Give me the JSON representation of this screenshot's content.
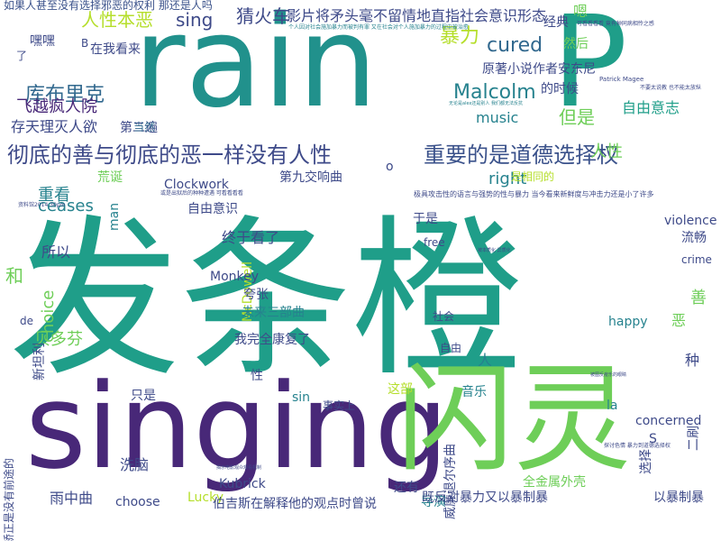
{
  "words": [
    {
      "text": "发条橙",
      "color": "#1f9e89"
    },
    {
      "text": "rain",
      "color": "#21918c"
    },
    {
      "text": "P",
      "color": "#1f9e89"
    },
    {
      "text": "singing",
      "color": "#482878"
    },
    {
      "text": "闪灵",
      "color": "#6ece58"
    },
    {
      "text": "彻底的善与彻底的恶一样没有人性",
      "color": "#3e4a89"
    },
    {
      "text": "重要的是道德选择权",
      "color": "#3b528b"
    },
    {
      "text": "库布里克",
      "color": "#31688e"
    },
    {
      "text": "Malcolm",
      "color": "#26828e"
    },
    {
      "text": "cured",
      "color": "#31688e"
    },
    {
      "text": "暴力",
      "color": "#b5de2b"
    },
    {
      "text": "人性本恶",
      "color": "#b5de2b"
    },
    {
      "text": "sing",
      "color": "#3e4a89"
    },
    {
      "text": "猜火车",
      "color": "#3e4a89"
    },
    {
      "text": "影片将矛头毫不留情地直指社会意识形态",
      "color": "#3e4a89"
    },
    {
      "text": "如果人甚至没有选择邪恶的权利 那还是人吗",
      "color": "#3b528b"
    },
    {
      "text": "飞越疯人院",
      "color": "#482878"
    },
    {
      "text": "存天理灭人欲",
      "color": "#3e4a89"
    },
    {
      "text": "自由意志",
      "color": "#1f9e89"
    },
    {
      "text": "人性",
      "color": "#6ece58"
    },
    {
      "text": "但是",
      "color": "#6ece58"
    },
    {
      "text": "right",
      "color": "#26828e"
    },
    {
      "text": "music",
      "color": "#26828e"
    },
    {
      "text": "第二遍",
      "color": "#3e4a89"
    },
    {
      "text": "当然",
      "color": "#31688e"
    },
    {
      "text": "原著小说作者安东尼",
      "color": "#3e4a89"
    },
    {
      "text": "的时候",
      "color": "#3e4a89"
    },
    {
      "text": "在我看来",
      "color": "#3e4a89"
    },
    {
      "text": "嘿嘿",
      "color": "#3e4a89"
    },
    {
      "text": "第九交响曲",
      "color": "#3e4a89"
    },
    {
      "text": "Clockwork",
      "color": "#3e4a89"
    },
    {
      "text": "自由意识",
      "color": "#3e4a89"
    },
    {
      "text": "重看",
      "color": "#26828e"
    },
    {
      "text": "ceases",
      "color": "#26828e"
    },
    {
      "text": "终于看了",
      "color": "#3e4a89"
    },
    {
      "text": "荒诞",
      "color": "#6ece58"
    },
    {
      "text": "于是",
      "color": "#3e4a89"
    },
    {
      "text": "经典",
      "color": "#3e4a89"
    },
    {
      "text": "嗯",
      "color": "#6ece58"
    },
    {
      "text": "然后",
      "color": "#6ece58"
    },
    {
      "text": "是相同的",
      "color": "#b5de2b"
    },
    {
      "text": "violence",
      "color": "#3e4a89"
    },
    {
      "text": "流畅",
      "color": "#3e4a89"
    },
    {
      "text": "crime",
      "color": "#3e4a89"
    },
    {
      "text": "free",
      "color": "#3e4a89"
    },
    {
      "text": "所以",
      "color": "#3e4a89"
    },
    {
      "text": "和",
      "color": "#6ece58"
    },
    {
      "text": "choice",
      "color": "#6ece58"
    },
    {
      "text": "man",
      "color": "#26828e"
    },
    {
      "text": "McDowell",
      "color": "#b5de2b"
    },
    {
      "text": "Monkey",
      "color": "#3e4a89"
    },
    {
      "text": "夸张",
      "color": "#3e4a89"
    },
    {
      "text": "未来三部曲",
      "color": "#26828e"
    },
    {
      "text": "我完全康复了",
      "color": "#3e4a89"
    },
    {
      "text": "社会",
      "color": "#3e4a89"
    },
    {
      "text": "自由",
      "color": "#3e4a89"
    },
    {
      "text": "人",
      "color": "#26828e"
    },
    {
      "text": "happy",
      "color": "#26828e"
    },
    {
      "text": "善",
      "color": "#6ece58"
    },
    {
      "text": "恶",
      "color": "#6ece58"
    },
    {
      "text": "种",
      "color": "#3e4a89"
    },
    {
      "text": "贝多芬",
      "color": "#6ece58"
    },
    {
      "text": "新坦利",
      "color": "#3e4a89"
    },
    {
      "text": "只是",
      "color": "#3e4a89"
    },
    {
      "text": "性",
      "color": "#3e4a89"
    },
    {
      "text": "sin",
      "color": "#26828e"
    },
    {
      "text": "事实上",
      "color": "#3e4a89"
    },
    {
      "text": "这部",
      "color": "#b5de2b"
    },
    {
      "text": "音乐",
      "color": "#26828e"
    },
    {
      "text": "la",
      "color": "#26828e"
    },
    {
      "text": "concerned",
      "color": "#3e4a89"
    },
    {
      "text": "S",
      "color": "#3e4a89"
    },
    {
      "text": "威廉退尔序曲",
      "color": "#3e4a89"
    },
    {
      "text": "Kubrick",
      "color": "#3e4a89"
    },
    {
      "text": "洗脑",
      "color": "#3e4a89"
    },
    {
      "text": "雨中曲",
      "color": "#3e4a89"
    },
    {
      "text": "choose",
      "color": "#3e4a89"
    },
    {
      "text": "Lucky",
      "color": "#b5de2b"
    },
    {
      "text": "伯吉斯在解释他的观点时曾说",
      "color": "#3e4a89"
    },
    {
      "text": "还有",
      "color": "#3e4a89"
    },
    {
      "text": "导演",
      "color": "#26828e"
    },
    {
      "text": "既反对暴力又以暴制暴",
      "color": "#3e4a89"
    },
    {
      "text": "全金属外壳",
      "color": "#6ece58"
    },
    {
      "text": "以暴制暴",
      "color": "#3e4a89"
    },
    {
      "text": "选择",
      "color": "#3e4a89"
    },
    {
      "text": "二刷",
      "color": "#3e4a89"
    },
    {
      "text": "行为矫正是没有前途的",
      "color": "#3e4a89"
    },
    {
      "text": "B",
      "color": "#3e4a89"
    },
    {
      "text": "了",
      "color": "#3e4a89"
    },
    {
      "text": "de",
      "color": "#3e4a89"
    },
    {
      "text": "o",
      "color": "#3e4a89"
    },
    {
      "text": "可看看看看 竟有种同病相怜之感",
      "color": "#3e4a89"
    },
    {
      "text": "极具攻击性的语言与强势的性与暴力 当今看来新鲜度与冲击力还是小了许多",
      "color": "#3e4a89"
    },
    {
      "text": "个人因对社会施加暴力而被判有罪 又在社会对个人施加暴力的过程中被治愈",
      "color": "#26828e"
    },
    {
      "text": "资料馆2014 30pm",
      "color": "#3e4a89"
    },
    {
      "text": "Patrick Magee",
      "color": "#3e4a89"
    },
    {
      "text": "不要太说教 也不能太放纵",
      "color": "#3e4a89"
    },
    {
      "text": "被本质化 异质化",
      "color": "#3e4a89"
    },
    {
      "text": "或是出狱后的种种遭遇 可看看看看",
      "color": "#3e4a89"
    },
    {
      "text": "探讨色情 暴力到道德选择权",
      "color": "#3e4a89"
    },
    {
      "text": "揭示电影观众观看机制",
      "color": "#3e4a89"
    },
    {
      "text": "被图反疫乐的眼睛",
      "color": "#3e4a89"
    },
    {
      "text": "无论是alex还是别人 我们都无法反抗",
      "color": "#26828e"
    }
  ]
}
